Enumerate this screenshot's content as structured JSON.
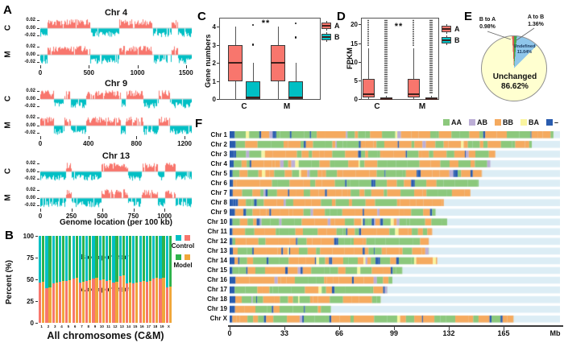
{
  "chart_data": [
    {
      "id": "A",
      "type": "area",
      "xlabel": "Genome location (per 100 kb)",
      "row_labels": [
        "C",
        "M"
      ],
      "y_ticks": [
        "0.02",
        "0.00",
        "-0.02"
      ],
      "pos_color": "#F8766D",
      "neg_color": "#00BFC4",
      "chromosomes": [
        {
          "title": "Chr 4",
          "x_max": 1560,
          "x_ticks": [
            0,
            500,
            1000,
            1500
          ],
          "seed": 4
        },
        {
          "title": "Chr 9",
          "x_max": 1260,
          "x_ticks": [
            0,
            400,
            800,
            1200
          ],
          "seed": 9
        },
        {
          "title": "Chr 13",
          "x_max": 1220,
          "x_ticks": [
            0,
            250,
            500,
            750,
            1000
          ],
          "seed": 13
        }
      ]
    },
    {
      "id": "B",
      "type": "bar",
      "stacked": true,
      "ylabel": "Percent (%)",
      "xlabel": "All chromosomes (C&M)",
      "y_ticks": [
        100,
        75,
        50,
        25,
        0
      ],
      "ylim": [
        0,
        100
      ],
      "categories": [
        "1",
        "2",
        "3",
        "4",
        "5",
        "6",
        "7",
        "8",
        "9",
        "10",
        "11",
        "12",
        "13",
        "14",
        "15",
        "16",
        "17",
        "18",
        "19",
        "X"
      ],
      "annotation_b": "B compartment",
      "annotation_a": "A compartment",
      "series": [
        {
          "name": "Control",
          "top_color": "#00BFC4",
          "bottom_color": "#F8766D",
          "a_percent": [
            46,
            40,
            45,
            47,
            48,
            51,
            46,
            48,
            51,
            49,
            48,
            46,
            54,
            45,
            45,
            47,
            47,
            51,
            51,
            41
          ]
        },
        {
          "name": "Model",
          "top_color": "#2EB34B",
          "bottom_color": "#F0A73A",
          "a_percent": [
            47,
            41,
            46,
            48,
            49,
            52,
            47,
            49,
            52,
            50,
            49,
            47,
            55,
            46,
            46,
            48,
            48,
            52,
            52,
            42
          ]
        }
      ]
    },
    {
      "id": "C",
      "type": "boxplot",
      "ylabel": "Gene numbers",
      "y_ticks": [
        0,
        1,
        2,
        3,
        4
      ],
      "ylim": [
        0,
        4.5
      ],
      "significance": "**",
      "series_labels": [
        "A",
        "B"
      ],
      "series_colors": {
        "A": "#F8766D",
        "B": "#00BFC4"
      },
      "groups": [
        {
          "name": "C",
          "A": {
            "low": 0,
            "q1": 1,
            "median": 2,
            "q3": 3,
            "high": 4,
            "outliers": []
          },
          "B": {
            "low": 0,
            "q1": 0,
            "median": 0.08,
            "q3": 1,
            "high": 2,
            "outliers": [
              3,
              4.1
            ]
          }
        },
        {
          "name": "M",
          "A": {
            "low": 0,
            "q1": 1,
            "median": 2,
            "q3": 3,
            "high": 4,
            "outliers": []
          },
          "B": {
            "low": 0,
            "q1": 0,
            "median": 0.08,
            "q3": 1,
            "high": 2,
            "outliers": [
              3.4,
              4.2
            ]
          }
        }
      ]
    },
    {
      "id": "D",
      "type": "boxplot",
      "ylabel": "FPKM",
      "y_ticks": [
        0,
        5,
        10,
        15,
        20
      ],
      "ylim": [
        0,
        21.8
      ],
      "significance": "**",
      "series_labels": [
        "A",
        "B"
      ],
      "series_colors": {
        "A": "#F8766D",
        "B": "#00BFC4"
      },
      "groups": [
        {
          "name": "C",
          "A": {
            "low": 0,
            "q1": 0.4,
            "median": 1.4,
            "q3": 5.5,
            "high": 13.5,
            "outlier_column": [
              14,
              21.4
            ]
          },
          "B": {
            "low": 0,
            "q1": 0,
            "median": 0.05,
            "q3": 0.35,
            "high": 0.9,
            "outlier_column": [
              1.2,
              21.4
            ]
          }
        },
        {
          "name": "M",
          "A": {
            "low": 0,
            "q1": 0.4,
            "median": 1.4,
            "q3": 5.5,
            "high": 13.5,
            "outlier_column": [
              14,
              21.4
            ]
          },
          "B": {
            "low": 0,
            "q1": 0,
            "median": 0.05,
            "q3": 0.35,
            "high": 0.9,
            "outlier_column": [
              1.2,
              21.4
            ]
          }
        }
      ]
    },
    {
      "id": "E",
      "type": "pie",
      "slices": [
        {
          "label": "A to B",
          "pct": 1.36,
          "pct_text": "1.36%",
          "color": "#44A248"
        },
        {
          "label": "Undefined",
          "pct": 11.04,
          "pct_text": "11.04%",
          "color": "#8FC6EA"
        },
        {
          "label": "Unchanged",
          "pct": 86.62,
          "pct_text": "86.62%",
          "color": "#FFFFD0"
        },
        {
          "label": "B to A",
          "pct": 0.98,
          "pct_text": "0.98%",
          "color": "#DE5B54"
        }
      ]
    },
    {
      "id": "F",
      "type": "ideogram",
      "legend": [
        {
          "label": "AA",
          "color": "#8CC87C"
        },
        {
          "label": "AB",
          "color": "#BCAED6"
        },
        {
          "label": "BB",
          "color": "#F5AA5F"
        },
        {
          "label": "BA",
          "color": "#FAF5A0"
        },
        {
          "label": "–",
          "color": "#2A5CAE"
        }
      ],
      "track_bg": "#DCEDF5",
      "x_ticks": [
        0,
        33,
        66,
        99,
        132,
        165
      ],
      "x_unit": "Mb",
      "chromosomes": [
        {
          "name": "Chr 1",
          "length_mb": 195,
          "seed": 1
        },
        {
          "name": "Chr 2",
          "length_mb": 182,
          "seed": 2
        },
        {
          "name": "Chr 3",
          "length_mb": 160,
          "seed": 3
        },
        {
          "name": "Chr 4",
          "length_mb": 157,
          "seed": 4
        },
        {
          "name": "Chr 5",
          "length_mb": 152,
          "seed": 5
        },
        {
          "name": "Chr 6",
          "length_mb": 150,
          "seed": 6
        },
        {
          "name": "Chr 7",
          "length_mb": 145,
          "seed": 7
        },
        {
          "name": "Chr 8",
          "length_mb": 129,
          "seed": 8
        },
        {
          "name": "Chr 9",
          "length_mb": 124,
          "seed": 9
        },
        {
          "name": "Chr 10",
          "length_mb": 131,
          "seed": 10
        },
        {
          "name": "Chr 11",
          "length_mb": 122,
          "seed": 11
        },
        {
          "name": "Chr 12",
          "length_mb": 120,
          "seed": 12
        },
        {
          "name": "Chr 13",
          "length_mb": 120,
          "seed": 13
        },
        {
          "name": "Chr 14",
          "length_mb": 125,
          "seed": 14
        },
        {
          "name": "Chr 15",
          "length_mb": 104,
          "seed": 15
        },
        {
          "name": "Chr 16",
          "length_mb": 98,
          "seed": 16
        },
        {
          "name": "Chr 17",
          "length_mb": 95,
          "seed": 17
        },
        {
          "name": "Chr 18",
          "length_mb": 91,
          "seed": 18
        },
        {
          "name": "Chr 19",
          "length_mb": 61,
          "seed": 19
        },
        {
          "name": "Chr X",
          "length_mb": 171,
          "seed": 20
        }
      ]
    }
  ]
}
